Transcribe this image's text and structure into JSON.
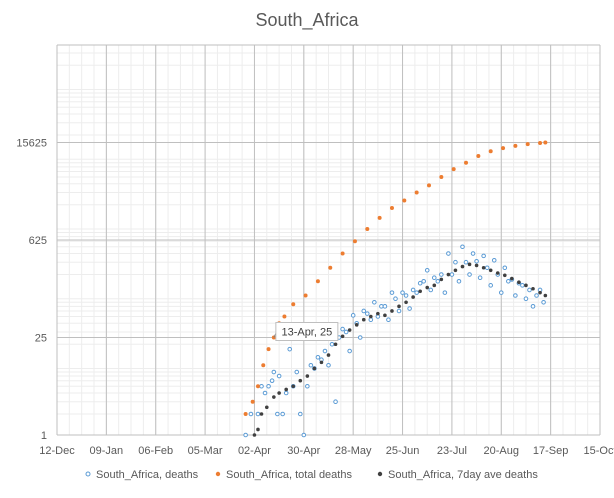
{
  "chart_data": {
    "type": "scatter",
    "title": "South_Africa",
    "xlabel": "",
    "ylabel": "",
    "x_axis": {
      "ticks": [
        "12-Dec",
        "09-Jan",
        "06-Feb",
        "05-Mar",
        "02-Apr",
        "30-Apr",
        "28-May",
        "25-Jun",
        "23-Jul",
        "20-Aug",
        "17-Sep",
        "15-Oct"
      ],
      "range": [
        "2019-12-12",
        "2020-10-15"
      ]
    },
    "y_axis": {
      "scale": "log",
      "ticks": [
        "1",
        "25",
        "625",
        "15625"
      ],
      "range": [
        1,
        390625
      ]
    },
    "grid": true,
    "legend_position": "bottom",
    "series": [
      {
        "name": "South_Africa, deaths",
        "color": "#5B9BD5",
        "marker": "hollow-circle",
        "points": [
          [
            "2020-03-28",
            1
          ],
          [
            "2020-03-31",
            2
          ],
          [
            "2020-04-04",
            2
          ],
          [
            "2020-04-06",
            5
          ],
          [
            "2020-04-08",
            4
          ],
          [
            "2020-04-10",
            5
          ],
          [
            "2020-04-12",
            6
          ],
          [
            "2020-04-13",
            8
          ],
          [
            "2020-04-15",
            2
          ],
          [
            "2020-04-16",
            7
          ],
          [
            "2020-04-18",
            2
          ],
          [
            "2020-04-20",
            4
          ],
          [
            "2020-04-22",
            17
          ],
          [
            "2020-04-24",
            5
          ],
          [
            "2020-04-26",
            8
          ],
          [
            "2020-04-28",
            2
          ],
          [
            "2020-04-30",
            1
          ],
          [
            "2020-05-02",
            5
          ],
          [
            "2020-05-04",
            10
          ],
          [
            "2020-05-06",
            9
          ],
          [
            "2020-05-08",
            13
          ],
          [
            "2020-05-10",
            12
          ],
          [
            "2020-05-12",
            16
          ],
          [
            "2020-05-14",
            10
          ],
          [
            "2020-05-16",
            20
          ],
          [
            "2020-05-18",
            3
          ],
          [
            "2020-05-20",
            25
          ],
          [
            "2020-05-22",
            33
          ],
          [
            "2020-05-24",
            30
          ],
          [
            "2020-05-26",
            16
          ],
          [
            "2020-05-28",
            52
          ],
          [
            "2020-05-30",
            40
          ],
          [
            "2020-06-01",
            25
          ],
          [
            "2020-06-03",
            60
          ],
          [
            "2020-06-05",
            55
          ],
          [
            "2020-06-07",
            45
          ],
          [
            "2020-06-09",
            80
          ],
          [
            "2020-06-11",
            50
          ],
          [
            "2020-06-13",
            70
          ],
          [
            "2020-06-15",
            70
          ],
          [
            "2020-06-17",
            45
          ],
          [
            "2020-06-19",
            110
          ],
          [
            "2020-06-21",
            90
          ],
          [
            "2020-06-23",
            60
          ],
          [
            "2020-06-25",
            110
          ],
          [
            "2020-06-27",
            100
          ],
          [
            "2020-06-29",
            65
          ],
          [
            "2020-07-01",
            120
          ],
          [
            "2020-07-03",
            110
          ],
          [
            "2020-07-05",
            150
          ],
          [
            "2020-07-07",
            160
          ],
          [
            "2020-07-09",
            230
          ],
          [
            "2020-07-11",
            120
          ],
          [
            "2020-07-13",
            180
          ],
          [
            "2020-07-15",
            160
          ],
          [
            "2020-07-17",
            200
          ],
          [
            "2020-07-19",
            110
          ],
          [
            "2020-07-21",
            400
          ],
          [
            "2020-07-23",
            200
          ],
          [
            "2020-07-25",
            300
          ],
          [
            "2020-07-27",
            160
          ],
          [
            "2020-07-29",
            500
          ],
          [
            "2020-07-31",
            300
          ],
          [
            "2020-08-02",
            200
          ],
          [
            "2020-08-04",
            400
          ],
          [
            "2020-08-06",
            310
          ],
          [
            "2020-08-08",
            180
          ],
          [
            "2020-08-10",
            370
          ],
          [
            "2020-08-12",
            250
          ],
          [
            "2020-08-14",
            140
          ],
          [
            "2020-08-16",
            320
          ],
          [
            "2020-08-18",
            200
          ],
          [
            "2020-08-20",
            110
          ],
          [
            "2020-08-22",
            250
          ],
          [
            "2020-08-24",
            160
          ],
          [
            "2020-08-26",
            170
          ],
          [
            "2020-08-28",
            100
          ],
          [
            "2020-08-30",
            150
          ],
          [
            "2020-09-01",
            140
          ],
          [
            "2020-09-03",
            90
          ],
          [
            "2020-09-05",
            120
          ],
          [
            "2020-09-07",
            70
          ],
          [
            "2020-09-09",
            100
          ],
          [
            "2020-09-11",
            120
          ],
          [
            "2020-09-13",
            80
          ]
        ]
      },
      {
        "name": "South_Africa, total deaths",
        "color": "#ED7D31",
        "marker": "filled-circle",
        "points": [
          [
            "2020-03-28",
            2
          ],
          [
            "2020-04-01",
            3
          ],
          [
            "2020-04-04",
            5
          ],
          [
            "2020-04-07",
            10
          ],
          [
            "2020-04-10",
            17
          ],
          [
            "2020-04-13",
            25
          ],
          [
            "2020-04-16",
            40
          ],
          [
            "2020-04-19",
            50
          ],
          [
            "2020-04-24",
            75
          ],
          [
            "2020-05-01",
            100
          ],
          [
            "2020-05-08",
            160
          ],
          [
            "2020-05-15",
            250
          ],
          [
            "2020-05-22",
            400
          ],
          [
            "2020-05-29",
            600
          ],
          [
            "2020-06-05",
            900
          ],
          [
            "2020-06-12",
            1300
          ],
          [
            "2020-06-19",
            1800
          ],
          [
            "2020-06-26",
            2300
          ],
          [
            "2020-07-03",
            3000
          ],
          [
            "2020-07-10",
            3800
          ],
          [
            "2020-07-17",
            5000
          ],
          [
            "2020-07-24",
            6500
          ],
          [
            "2020-07-31",
            8000
          ],
          [
            "2020-08-07",
            10000
          ],
          [
            "2020-08-14",
            11700
          ],
          [
            "2020-08-21",
            13000
          ],
          [
            "2020-08-28",
            14000
          ],
          [
            "2020-09-04",
            14800
          ],
          [
            "2020-09-11",
            15400
          ],
          [
            "2020-09-14",
            15600
          ]
        ]
      },
      {
        "name": "South_Africa, 7day ave deaths",
        "color": "#404040",
        "marker": "filled-circle",
        "points": [
          [
            "2020-04-02",
            1
          ],
          [
            "2020-04-04",
            1.2
          ],
          [
            "2020-04-06",
            2
          ],
          [
            "2020-04-09",
            2.5
          ],
          [
            "2020-04-13",
            3.5
          ],
          [
            "2020-04-16",
            4
          ],
          [
            "2020-04-20",
            4.5
          ],
          [
            "2020-04-24",
            5
          ],
          [
            "2020-04-28",
            6
          ],
          [
            "2020-05-02",
            7
          ],
          [
            "2020-05-06",
            9
          ],
          [
            "2020-05-10",
            11
          ],
          [
            "2020-05-14",
            14
          ],
          [
            "2020-05-18",
            20
          ],
          [
            "2020-05-22",
            26
          ],
          [
            "2020-05-26",
            32
          ],
          [
            "2020-05-30",
            38
          ],
          [
            "2020-06-03",
            45
          ],
          [
            "2020-06-07",
            50
          ],
          [
            "2020-06-11",
            55
          ],
          [
            "2020-06-15",
            52
          ],
          [
            "2020-06-19",
            60
          ],
          [
            "2020-06-23",
            70
          ],
          [
            "2020-06-27",
            80
          ],
          [
            "2020-07-01",
            95
          ],
          [
            "2020-07-05",
            115
          ],
          [
            "2020-07-09",
            130
          ],
          [
            "2020-07-13",
            140
          ],
          [
            "2020-07-17",
            170
          ],
          [
            "2020-07-21",
            200
          ],
          [
            "2020-07-25",
            230
          ],
          [
            "2020-07-29",
            260
          ],
          [
            "2020-08-02",
            280
          ],
          [
            "2020-08-06",
            270
          ],
          [
            "2020-08-10",
            250
          ],
          [
            "2020-08-14",
            230
          ],
          [
            "2020-08-18",
            210
          ],
          [
            "2020-08-22",
            195
          ],
          [
            "2020-08-26",
            175
          ],
          [
            "2020-08-30",
            155
          ],
          [
            "2020-09-03",
            140
          ],
          [
            "2020-09-07",
            125
          ],
          [
            "2020-09-11",
            110
          ],
          [
            "2020-09-14",
            100
          ]
        ]
      }
    ],
    "annotations": [
      {
        "text": "13-Apr, 25",
        "x": "2020-04-13",
        "y": 25
      }
    ]
  }
}
